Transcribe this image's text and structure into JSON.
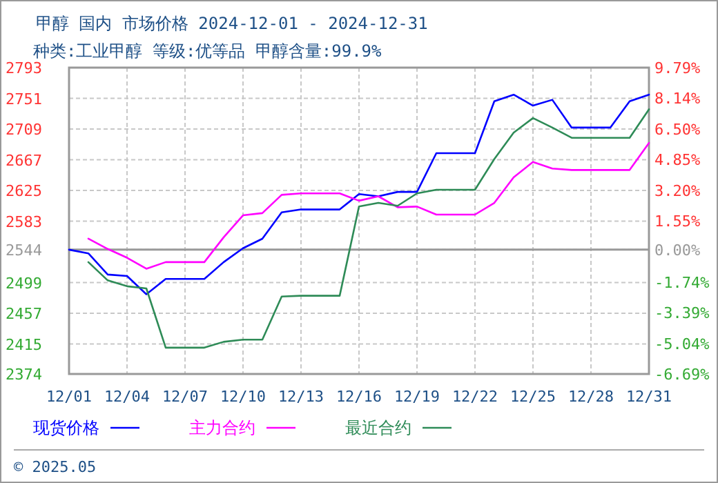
{
  "chart_data": {
    "type": "line",
    "title": "甲醇 国内 市场价格 2024-12-01 - 2024-12-31",
    "subtitle": "种类:工业甲醇 等级:优等品 甲醇含量:99.9%",
    "x": [
      "2024-12-01",
      "2024-12-02",
      "2024-12-03",
      "2024-12-04",
      "2024-12-05",
      "2024-12-06",
      "2024-12-07",
      "2024-12-08",
      "2024-12-09",
      "2024-12-10",
      "2024-12-11",
      "2024-12-12",
      "2024-12-13",
      "2024-12-14",
      "2024-12-15",
      "2024-12-16",
      "2024-12-17",
      "2024-12-18",
      "2024-12-19",
      "2024-12-20",
      "2024-12-21",
      "2024-12-22",
      "2024-12-23",
      "2024-12-24",
      "2024-12-25",
      "2024-12-26",
      "2024-12-27",
      "2024-12-28",
      "2024-12-29",
      "2024-12-30",
      "2024-12-31"
    ],
    "series": [
      {
        "name": "现货价格",
        "color": "#0000ff",
        "values": [
          2544,
          2539,
          2510,
          2508,
          2483,
          2504,
          2504,
          2504,
          2527,
          2546,
          2559,
          2595,
          2599,
          2599,
          2599,
          2620,
          2617,
          2623,
          2623,
          2676,
          2676,
          2676,
          2747,
          2756,
          2741,
          2749,
          2711,
          2711,
          2711,
          2747,
          2756
        ]
      },
      {
        "name": "主力合约",
        "color": "#ff00ff",
        "values": [
          null,
          2559,
          2545,
          2533,
          2518,
          2527,
          2527,
          2527,
          2561,
          2591,
          2594,
          2619,
          2621,
          2621,
          2621,
          2611,
          2617,
          2602,
          2603,
          2592,
          2592,
          2592,
          2608,
          2643,
          2664,
          2655,
          2653,
          2653,
          2653,
          2653,
          2690
        ]
      },
      {
        "name": "最近合约",
        "color": "#2e8b57",
        "values": [
          null,
          2527,
          2502,
          2494,
          2491,
          2410,
          2410,
          2410,
          2418,
          2421,
          2421,
          2480,
          2481,
          2481,
          2481,
          2603,
          2608,
          2604,
          2621,
          2626,
          2626,
          2626,
          2668,
          2704,
          2724,
          2711,
          2697,
          2697,
          2697,
          2697,
          2736
        ]
      }
    ],
    "xlim": [
      "2024-12-01",
      "2024-12-31"
    ],
    "xticks": [
      {
        "value": "2024-12-01",
        "label": "12/01"
      },
      {
        "value": "2024-12-04",
        "label": "12/04"
      },
      {
        "value": "2024-12-07",
        "label": "12/07"
      },
      {
        "value": "2024-12-10",
        "label": "12/10"
      },
      {
        "value": "2024-12-13",
        "label": "12/13"
      },
      {
        "value": "2024-12-16",
        "label": "12/16"
      },
      {
        "value": "2024-12-19",
        "label": "12/19"
      },
      {
        "value": "2024-12-22",
        "label": "12/22"
      },
      {
        "value": "2024-12-25",
        "label": "12/25"
      },
      {
        "value": "2024-12-28",
        "label": "12/28"
      },
      {
        "value": "2024-12-31",
        "label": "12/31"
      }
    ],
    "ylim": [
      2374,
      2793
    ],
    "yticks": [
      2374,
      2415,
      2457,
      2499,
      2544,
      2583,
      2625,
      2667,
      2709,
      2751,
      2793
    ],
    "y2lim": [
      -6.69,
      9.79
    ],
    "y2ticks": [
      {
        "value": -6.69,
        "label": "-6.69%"
      },
      {
        "value": -5.04,
        "label": "-5.04%"
      },
      {
        "value": -3.39,
        "label": "-3.39%"
      },
      {
        "value": -1.74,
        "label": "-1.74%"
      },
      {
        "value": 0,
        "label": "0.00%"
      },
      {
        "value": 1.55,
        "label": "1.55%"
      },
      {
        "value": 3.2,
        "label": "3.20%"
      },
      {
        "value": 4.85,
        "label": "4.85%"
      },
      {
        "value": 6.5,
        "label": "6.50%"
      },
      {
        "value": 8.14,
        "label": "8.14%"
      },
      {
        "value": 9.79,
        "label": "9.79%"
      }
    ],
    "ref_lines": [
      {
        "axis": "y",
        "value": 2544,
        "color": "#999999"
      }
    ],
    "grid": true,
    "legend": "bottom",
    "marker": "none",
    "line_style": "solid",
    "annotations": [
      "© 2025.05"
    ]
  }
}
